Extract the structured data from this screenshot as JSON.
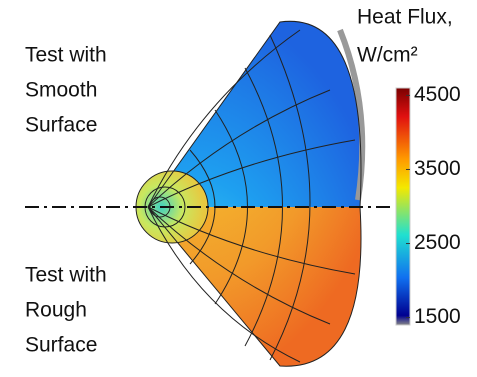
{
  "labels": {
    "top": [
      "Test with",
      "Smooth",
      "Surface"
    ],
    "bottom": [
      "Test with",
      "Rough",
      "Surface"
    ]
  },
  "colorbar": {
    "title": "Heat Flux,",
    "unit": "W/cm²",
    "range": [
      1400,
      4600
    ],
    "ticks": [
      1500,
      2500,
      3500,
      4500
    ]
  }
}
